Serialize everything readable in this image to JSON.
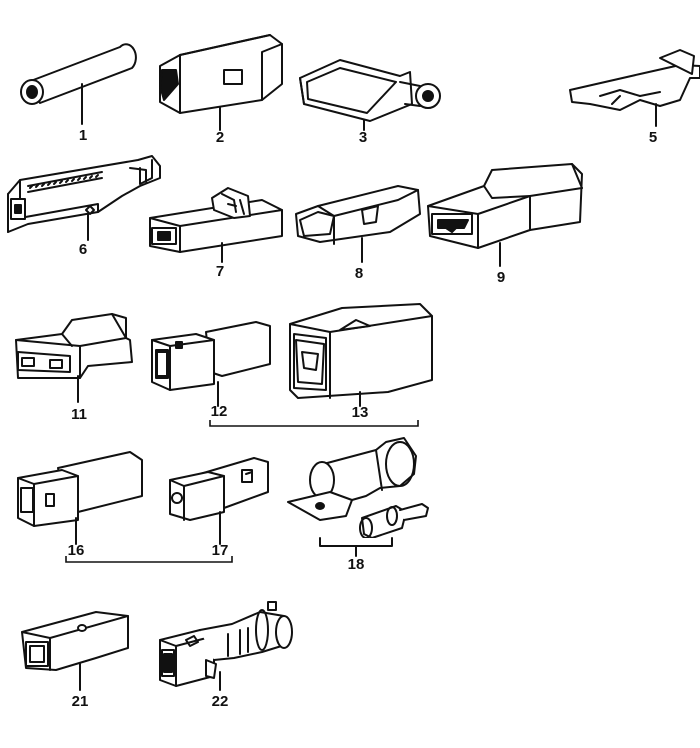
{
  "labels": {
    "p1": "1",
    "p2": "2",
    "p3": "3",
    "p5": "5",
    "p6": "6",
    "p7": "7",
    "p8": "8",
    "p9": "9",
    "p11": "11",
    "p12": "12",
    "p13": "13",
    "p16": "16",
    "p17": "17",
    "p18": "18",
    "p21": "21",
    "p22": "22"
  }
}
